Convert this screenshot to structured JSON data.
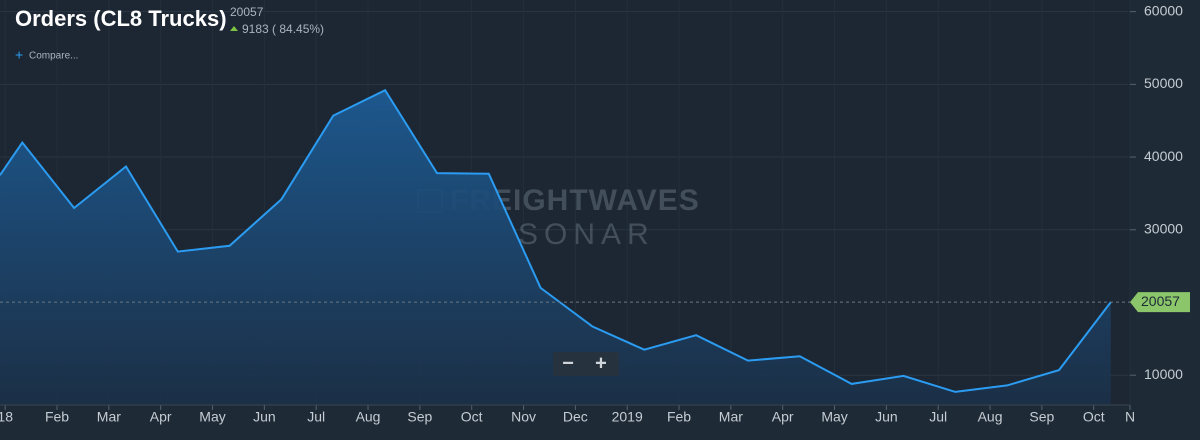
{
  "chart_data": {
    "type": "area-line",
    "title": "Orders (CL8 Trucks)",
    "last_value": "20057",
    "change": "9183 ( 84.45%)",
    "compare": "Compare...",
    "watermark": [
      "FREIGHTWAVES",
      "SONAR"
    ],
    "zoom_buttons": [
      "−",
      "+"
    ],
    "x": [
      -0.1,
      0.33,
      1.33,
      2.33,
      3.33,
      4.33,
      5.33,
      6.33,
      7.33,
      8.33,
      9.33,
      10.33,
      11.33,
      12.33,
      13.33,
      14.33,
      15.33,
      16.33,
      17.33,
      18.33,
      19.33,
      20.33,
      21.33
    ],
    "series": [
      {
        "name": "Orders (CL8 Trucks)",
        "color": "#2b9cf2",
        "values": [
          37500,
          42000,
          33000,
          38700,
          27000,
          27800,
          34200,
          45700,
          49200,
          37800,
          37700,
          22000,
          16700,
          13500,
          15500,
          12000,
          12600,
          8800,
          9900,
          7700,
          8600,
          10700,
          20057
        ]
      }
    ],
    "xlim": [
      -0.1,
      21.7
    ],
    "xticks": [
      {
        "value": 0,
        "label": "18"
      },
      {
        "value": 1,
        "label": "Feb"
      },
      {
        "value": 2,
        "label": "Mar"
      },
      {
        "value": 3,
        "label": "Apr"
      },
      {
        "value": 4,
        "label": "May"
      },
      {
        "value": 5,
        "label": "Jun"
      },
      {
        "value": 6,
        "label": "Jul"
      },
      {
        "value": 7,
        "label": "Aug"
      },
      {
        "value": 8,
        "label": "Sep"
      },
      {
        "value": 9,
        "label": "Oct"
      },
      {
        "value": 10,
        "label": "Nov"
      },
      {
        "value": 11,
        "label": "Dec"
      },
      {
        "value": 12,
        "label": "2019"
      },
      {
        "value": 13,
        "label": "Feb"
      },
      {
        "value": 14,
        "label": "Mar"
      },
      {
        "value": 15,
        "label": "Apr"
      },
      {
        "value": 16,
        "label": "May"
      },
      {
        "value": 17,
        "label": "Jun"
      },
      {
        "value": 18,
        "label": "Jul"
      },
      {
        "value": 19,
        "label": "Aug"
      },
      {
        "value": 20,
        "label": "Sep"
      },
      {
        "value": 21,
        "label": "Oct"
      },
      {
        "value": 21.7,
        "label": "N"
      }
    ],
    "ylim": [
      5900,
      61600
    ],
    "yticks": [
      10000,
      30000,
      40000,
      50000,
      60000
    ],
    "grid": true
  }
}
